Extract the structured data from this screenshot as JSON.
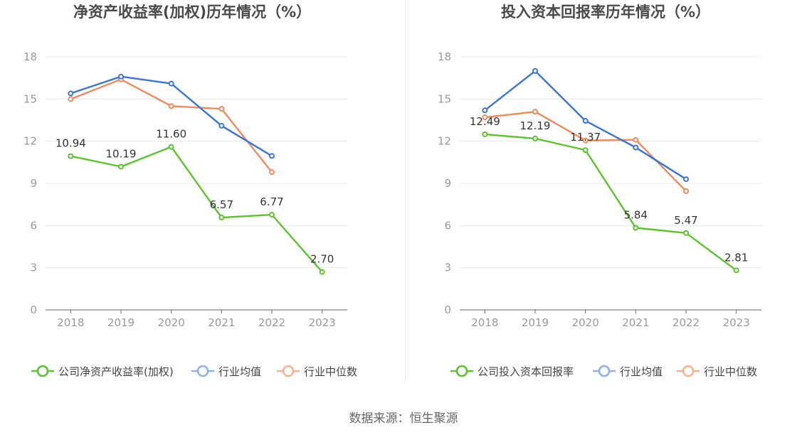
{
  "colors": {
    "company": "#5bc42a",
    "industry_avg": "#3a74d8",
    "industry_median": "#f08a5d",
    "axis": "#666666",
    "grid": "#e6e8ee",
    "tick_label": "#999999",
    "title": "#4a4a4a"
  },
  "source": "数据来源：恒生聚源",
  "chart_data": [
    {
      "type": "line",
      "title": "净资产收益率(加权)历年情况（%）",
      "categories": [
        "2018",
        "2019",
        "2020",
        "2021",
        "2022",
        "2023"
      ],
      "ylim": [
        0,
        18
      ],
      "yticks": [
        0,
        3,
        6,
        9,
        12,
        15,
        18
      ],
      "grid": true,
      "legend_position": "bottom",
      "series": [
        {
          "name": "公司净资产收益率(加权)",
          "values": [
            10.94,
            10.19,
            11.6,
            6.57,
            6.77,
            2.7
          ],
          "labels": [
            "10.94",
            "10.19",
            "11.60",
            "6.57",
            "6.77",
            "2.70"
          ],
          "color": "#5bc42a"
        },
        {
          "name": "行业均值",
          "values": [
            15.4,
            16.6,
            16.1,
            13.1,
            10.95,
            null
          ],
          "color": "#3a74d8"
        },
        {
          "name": "行业中位数",
          "values": [
            15.0,
            16.4,
            14.5,
            14.3,
            9.8,
            null
          ],
          "color": "#f08a5d"
        }
      ]
    },
    {
      "type": "line",
      "title": "投入资本回报率历年情况（%）",
      "categories": [
        "2018",
        "2019",
        "2020",
        "2021",
        "2022",
        "2023"
      ],
      "ylim": [
        0,
        18
      ],
      "yticks": [
        0,
        3,
        6,
        9,
        12,
        15,
        18
      ],
      "grid": true,
      "legend_position": "bottom",
      "series": [
        {
          "name": "公司投入资本回报率",
          "values": [
            12.49,
            12.19,
            11.37,
            5.84,
            5.47,
            2.81
          ],
          "labels": [
            "12.49",
            "12.19",
            "11.37",
            "5.84",
            "5.47",
            "2.81"
          ],
          "color": "#5bc42a"
        },
        {
          "name": "行业均值",
          "values": [
            14.2,
            17.0,
            13.45,
            11.55,
            9.3,
            null
          ],
          "color": "#3a74d8"
        },
        {
          "name": "行业中位数",
          "values": [
            13.7,
            14.1,
            12.05,
            12.1,
            8.45,
            null
          ],
          "color": "#f08a5d"
        }
      ]
    }
  ]
}
